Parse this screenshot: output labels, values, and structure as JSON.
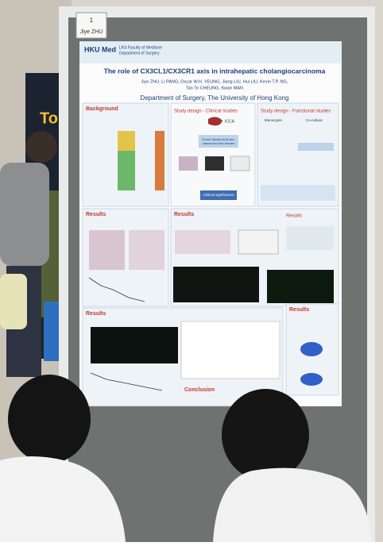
{
  "label_card": {
    "number": "1",
    "name": "Jiye ZHU"
  },
  "banner": {
    "text": "To"
  },
  "poster": {
    "logo": "HKU Med",
    "faculty": "LKS Faculty of Medicine",
    "faculty_department": "Department of Surgery",
    "title": "The role of CX3CL1/CX3CR1 axis in intrahepatic cholangiocarcinoma",
    "authors_line_1": "Jiye ZHU, Li PANG, Oscar W.H. YEUNG, Jiang LIU, Hui LIU, Kevin T.P. NG,",
    "authors_line_2": "Tan To CHEUNG, Kwan MAN",
    "affiliation": "Department of  Surgery, The University of Hong Kong",
    "sections": {
      "background": "Background",
      "clinical": "Study design - Clinical studies",
      "functional": "Study design - Functional studies",
      "results_1": "Results",
      "results_2": "Results",
      "results_3": "Results",
      "results_4": "Results",
      "results_5": "Results",
      "conclusion": "Conclusion"
    },
    "boxes": {
      "icca": "ICCA",
      "tissues": "Tumor tissues and non-cancerous liver tissues",
      "clinical_significance": "Clinical significance",
      "coculture": "Co-culture",
      "monocytes": "Monocytes"
    }
  }
}
